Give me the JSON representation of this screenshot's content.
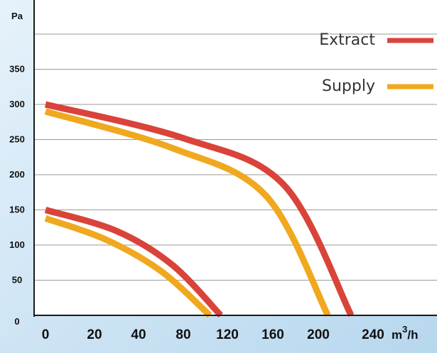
{
  "chart_data": {
    "type": "line",
    "xlabel": "m³/h",
    "ylabel": "Pa",
    "x_tick_labels": [
      "0",
      "20",
      "40",
      "80",
      "120",
      "160",
      "200",
      "240"
    ],
    "y_ticks": [
      0,
      50,
      100,
      150,
      200,
      250,
      300,
      350
    ],
    "ylim": [
      0,
      400
    ],
    "grid": true,
    "legend_position": "top-right",
    "legend": [
      {
        "label": "Extract",
        "color": "#d9433a"
      },
      {
        "label": "Supply",
        "color": "#f0a81e"
      }
    ],
    "series": [
      {
        "name": "Extract",
        "color": "#d9433a",
        "x": [
          0,
          120,
          210,
          264
        ],
        "y": [
          300,
          252,
          185,
          0
        ]
      },
      {
        "name": "Supply",
        "color": "#f0a81e",
        "x": [
          0,
          110,
          194,
          247
        ],
        "y": [
          290,
          238,
          170,
          0
        ]
      },
      {
        "name": "Extract",
        "color": "#d9433a",
        "x": [
          0,
          60,
          110,
          154
        ],
        "y": [
          150,
          120,
          72,
          0
        ]
      },
      {
        "name": "Supply",
        "color": "#f0a81e",
        "x": [
          0,
          50,
          100,
          144
        ],
        "y": [
          138,
          108,
          63,
          0
        ]
      }
    ]
  }
}
